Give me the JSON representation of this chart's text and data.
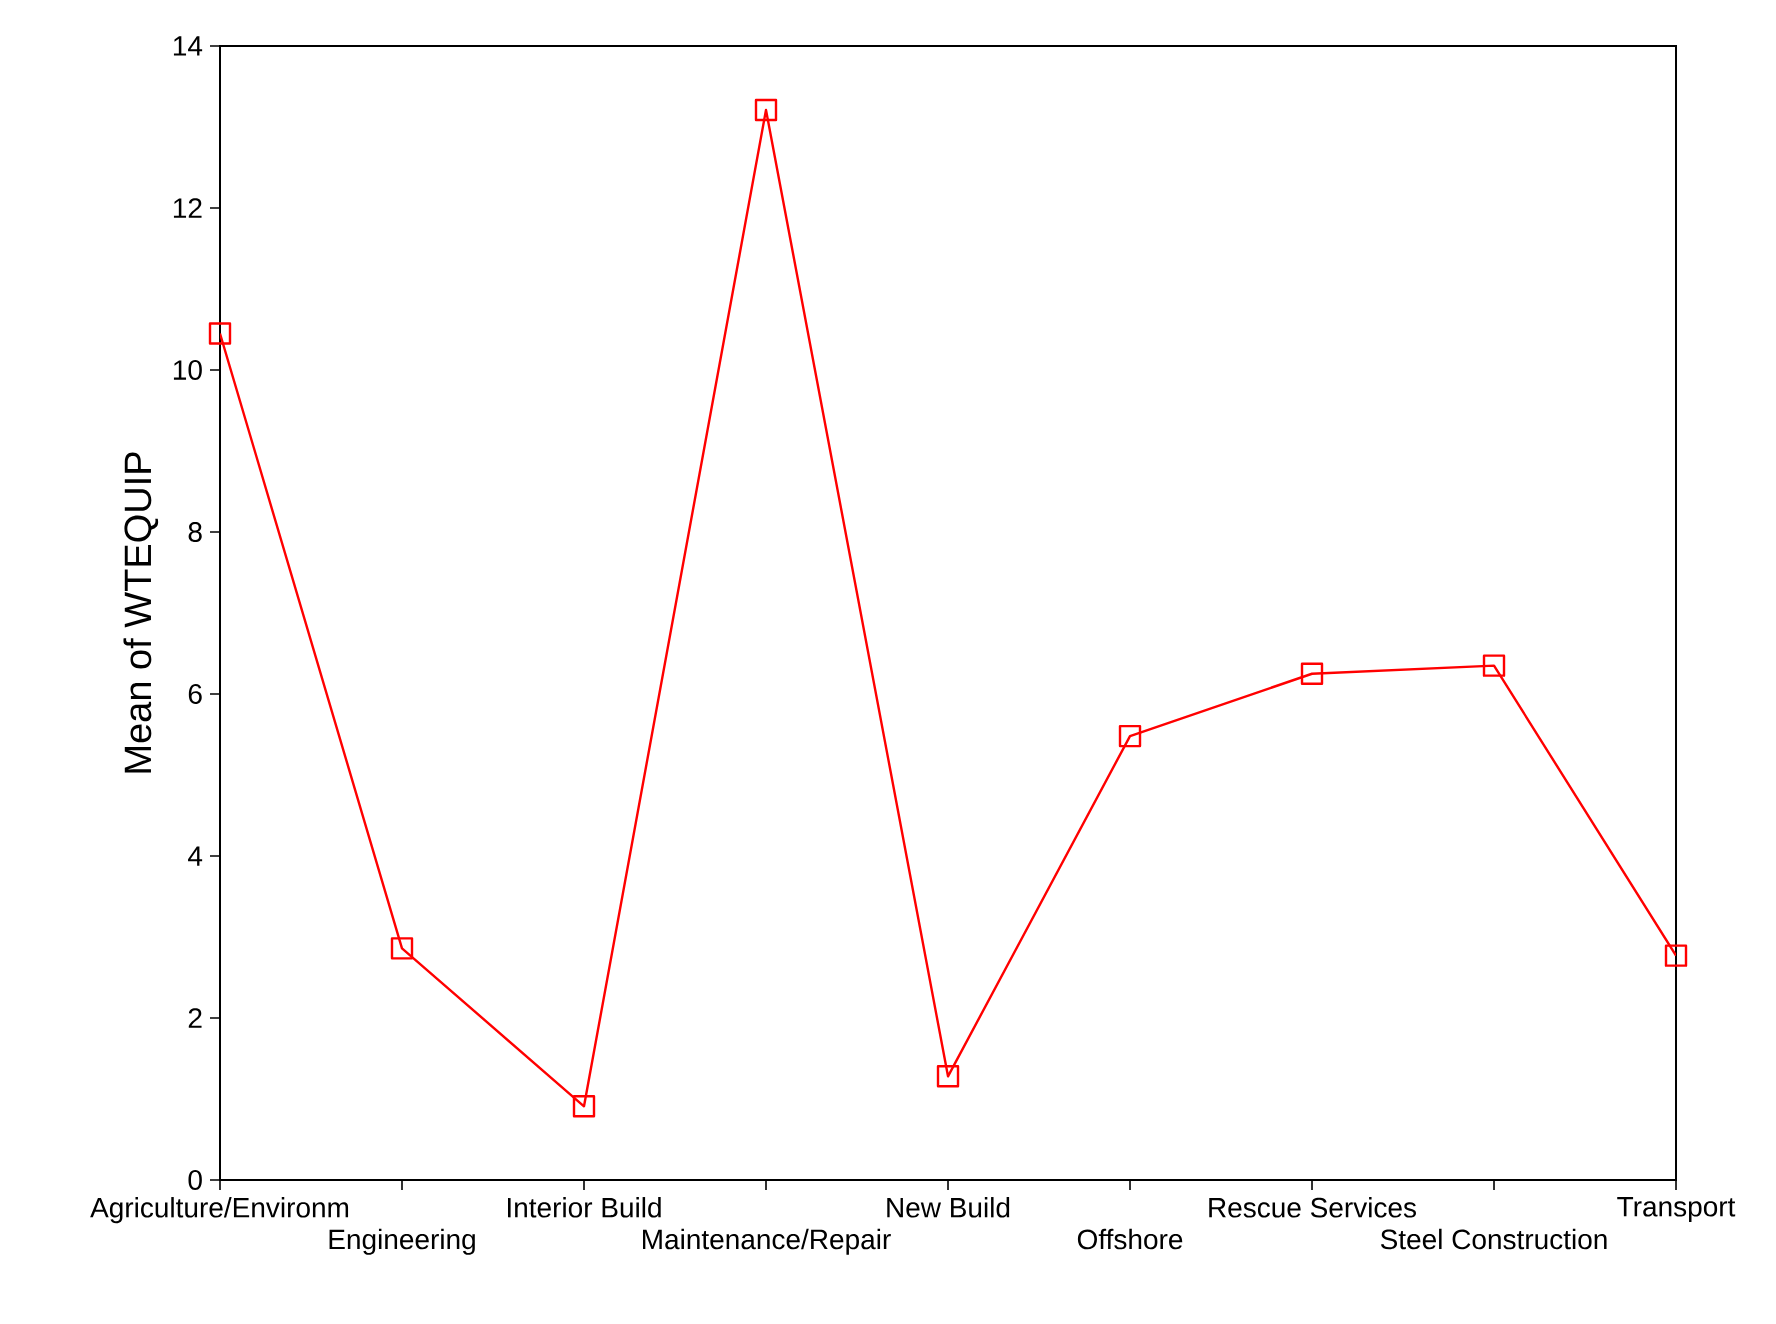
{
  "chart_data": {
    "type": "line",
    "ylabel": "Mean of WTEQUIP",
    "categories": [
      "Agriculture/Environm",
      "Engineering",
      "Interior Build",
      "Maintenance/Repair",
      "New Build",
      "Offshore",
      "Rescue Services",
      "Steel Construction",
      "Transport"
    ],
    "series": [
      {
        "color": "#ff0000",
        "values": [
          10.45,
          2.86,
          0.91,
          13.21,
          1.28,
          5.48,
          6.25,
          6.35,
          2.77
        ]
      }
    ],
    "ylim": [
      0,
      14
    ],
    "yticks": [
      0,
      2,
      4,
      6,
      8,
      10,
      12,
      14
    ],
    "marker": "square",
    "line_style": "solid"
  }
}
